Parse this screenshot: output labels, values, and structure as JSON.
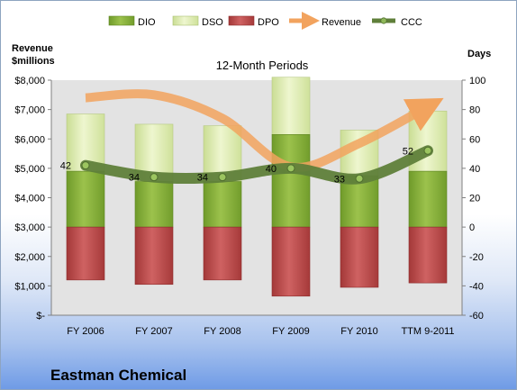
{
  "company": "Eastman Chemical",
  "chart_data": {
    "type": "bar",
    "title": "12-Month Periods",
    "left_axis_label": [
      "Revenue",
      "$millions"
    ],
    "right_axis_label": "Days",
    "categories": [
      "FY 2006",
      "FY 2007",
      "FY 2008",
      "FY 2009",
      "FY 2010",
      "TTM 9-2011"
    ],
    "left_axis": {
      "min": 0,
      "max": 8000,
      "ticks": [
        "$-",
        "$1,000",
        "$2,000",
        "$3,000",
        "$4,000",
        "$5,000",
        "$6,000",
        "$7,000",
        "$8,000"
      ]
    },
    "right_axis": {
      "min": -60,
      "max": 100,
      "ticks": [
        "-60",
        "-40",
        "-20",
        "0",
        "20",
        "40",
        "60",
        "80",
        "100"
      ]
    },
    "legend": {
      "position": "top",
      "items": [
        {
          "name": "DIO",
          "color": "#8db33c",
          "kind": "bar"
        },
        {
          "name": "DSO",
          "color": "#dbeaa8",
          "kind": "bar"
        },
        {
          "name": "DPO",
          "color": "#bd4a4a",
          "kind": "bar"
        },
        {
          "name": "Revenue",
          "color": "#f2a35e",
          "kind": "arrow"
        },
        {
          "name": "CCC",
          "color": "#5f7f3a",
          "kind": "line"
        }
      ]
    },
    "series": [
      {
        "name": "DIO",
        "axis": "right",
        "values": [
          38,
          31,
          31,
          63,
          35,
          38
        ]
      },
      {
        "name": "DSO",
        "axis": "right",
        "values": [
          39,
          39,
          38,
          39,
          31,
          41
        ]
      },
      {
        "name": "DPO",
        "axis": "right",
        "values": [
          -36,
          -39,
          -36,
          -47,
          -41,
          -38
        ]
      },
      {
        "name": "Revenue",
        "axis": "left",
        "values": [
          7400,
          7500,
          6700,
          5050,
          5850,
          7100
        ]
      },
      {
        "name": "CCC",
        "axis": "right",
        "values": [
          42,
          34,
          34,
          40,
          33,
          52
        ],
        "labels": [
          "42",
          "34",
          "34",
          "40",
          "33",
          "52"
        ]
      }
    ],
    "grid": false
  },
  "colors": {
    "plot_background": "#e3e3e3",
    "dio": "#8db33c",
    "dso": "#dbeaa8",
    "dpo": "#bd4a4a",
    "revenue": "#f2a35e",
    "ccc": "#5f7f3a"
  }
}
